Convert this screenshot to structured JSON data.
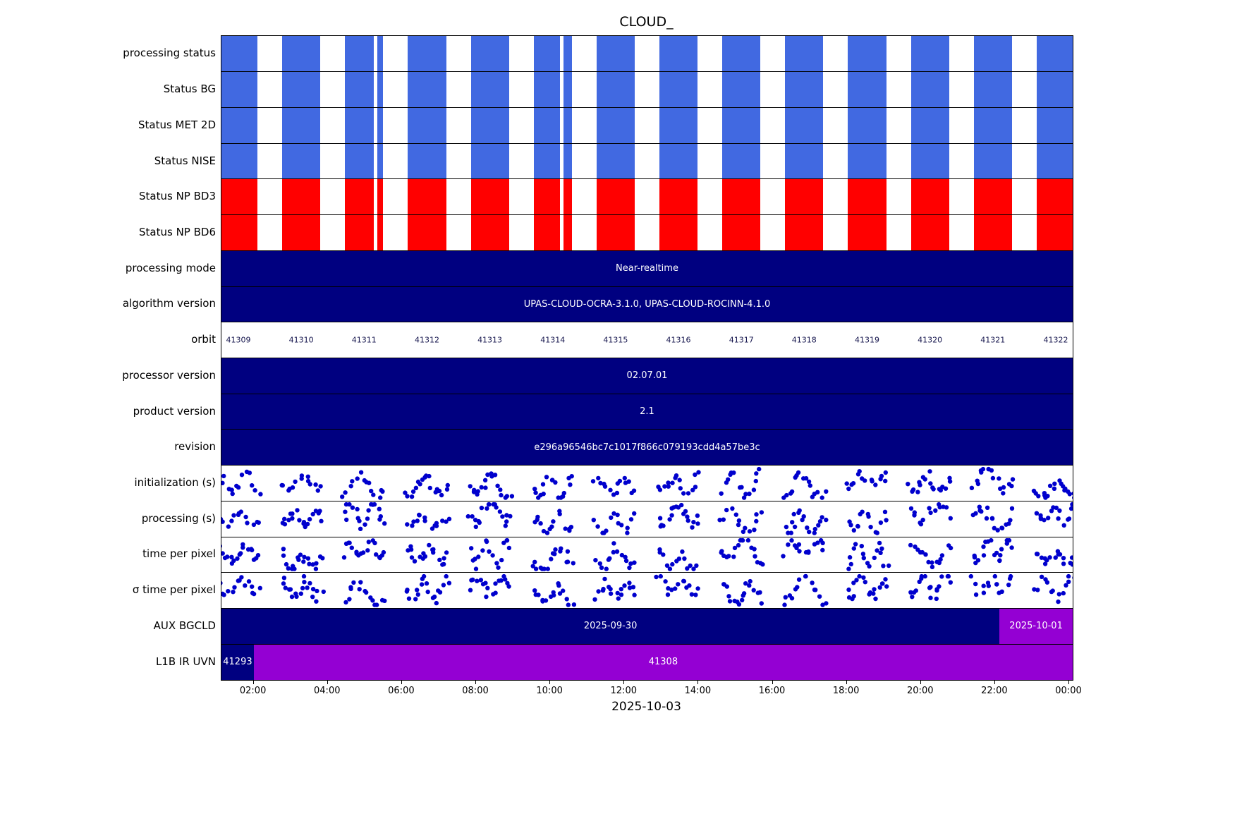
{
  "chart_data": {
    "type": "timeline-status",
    "title": "CLOUD_",
    "date_label": "2025-10-03",
    "x_domain_hours": [
      1.132,
      24.095
    ],
    "x_ticks": [
      {
        "label": "02:00",
        "hour": 2
      },
      {
        "label": "04:00",
        "hour": 4
      },
      {
        "label": "06:00",
        "hour": 6
      },
      {
        "label": "08:00",
        "hour": 8
      },
      {
        "label": "10:00",
        "hour": 10
      },
      {
        "label": "12:00",
        "hour": 12
      },
      {
        "label": "14:00",
        "hour": 14
      },
      {
        "label": "16:00",
        "hour": 16
      },
      {
        "label": "18:00",
        "hour": 18
      },
      {
        "label": "20:00",
        "hour": 20
      },
      {
        "label": "22:00",
        "hour": 22
      },
      {
        "label": "00:00",
        "hour": 24
      }
    ],
    "orbits": [
      "41309",
      "41310",
      "41311",
      "41312",
      "41313",
      "41314",
      "41315",
      "41316",
      "41317",
      "41318",
      "41319",
      "41320",
      "41321",
      "41322"
    ],
    "orbit_centers_frac": [
      0.0199,
      0.0937,
      0.1676,
      0.2415,
      0.3153,
      0.3892,
      0.463,
      0.5369,
      0.6108,
      0.6846,
      0.7585,
      0.8323,
      0.9062,
      0.9801
    ],
    "stripe_halfwidth_frac": 0.0224,
    "data_gaps_frac": [
      [
        0.179,
        0.1832
      ],
      [
        0.3977,
        0.4019
      ]
    ],
    "colors": {
      "stripe_blue": "#4169e1",
      "stripe_red": "#ff0000",
      "navy": "#000080",
      "purple": "#9400d3",
      "dot": "#0000cd"
    },
    "rows": [
      {
        "label": "processing status",
        "type": "stripes",
        "color_key": "stripe_blue"
      },
      {
        "label": "Status BG",
        "type": "stripes",
        "color_key": "stripe_blue"
      },
      {
        "label": "Status MET 2D",
        "type": "stripes",
        "color_key": "stripe_blue"
      },
      {
        "label": "Status NISE",
        "type": "stripes",
        "color_key": "stripe_blue"
      },
      {
        "label": "Status NP BD3",
        "type": "stripes",
        "color_key": "stripe_red"
      },
      {
        "label": "Status NP BD6",
        "type": "stripes",
        "color_key": "stripe_red"
      },
      {
        "label": "processing mode",
        "type": "bar",
        "segments": [
          {
            "text": "Near-realtime",
            "start": 0,
            "end": 1,
            "color_key": "navy"
          }
        ]
      },
      {
        "label": "algorithm version",
        "type": "bar",
        "segments": [
          {
            "text": "UPAS-CLOUD-OCRA-3.1.0, UPAS-CLOUD-ROCINN-4.1.0",
            "start": 0,
            "end": 1,
            "color_key": "navy"
          }
        ]
      },
      {
        "label": "orbit",
        "type": "orbit-numbers"
      },
      {
        "label": "processor version",
        "type": "bar",
        "segments": [
          {
            "text": "02.07.01",
            "start": 0,
            "end": 1,
            "color_key": "navy"
          }
        ]
      },
      {
        "label": "product version",
        "type": "bar",
        "segments": [
          {
            "text": "2.1",
            "start": 0,
            "end": 1,
            "color_key": "navy"
          }
        ]
      },
      {
        "label": "revision",
        "type": "bar",
        "segments": [
          {
            "text": "e296a96546bc7c1017f866c079193cdd4a57be3c",
            "start": 0,
            "end": 1,
            "color_key": "navy"
          }
        ]
      },
      {
        "label": "initialization (s)",
        "type": "scatter",
        "seed": 101
      },
      {
        "label": "processing (s)",
        "type": "scatter",
        "seed": 202
      },
      {
        "label": "time per pixel",
        "type": "scatter",
        "seed": 303
      },
      {
        "label": "σ time per pixel",
        "type": "scatter",
        "seed": 404
      },
      {
        "label": "AUX BGCLD",
        "type": "bar",
        "segments": [
          {
            "text": "2025-09-30",
            "start": 0,
            "end": 0.914,
            "color_key": "navy"
          },
          {
            "text": "2025-10-01",
            "start": 0.914,
            "end": 1,
            "color_key": "purple"
          }
        ]
      },
      {
        "label": "L1B IR UVN",
        "type": "bar",
        "segments": [
          {
            "text": "41293",
            "start": 0,
            "end": 0.038,
            "color_key": "navy"
          },
          {
            "text": "41308",
            "start": 0.038,
            "end": 1,
            "color_key": "purple"
          }
        ]
      }
    ]
  }
}
